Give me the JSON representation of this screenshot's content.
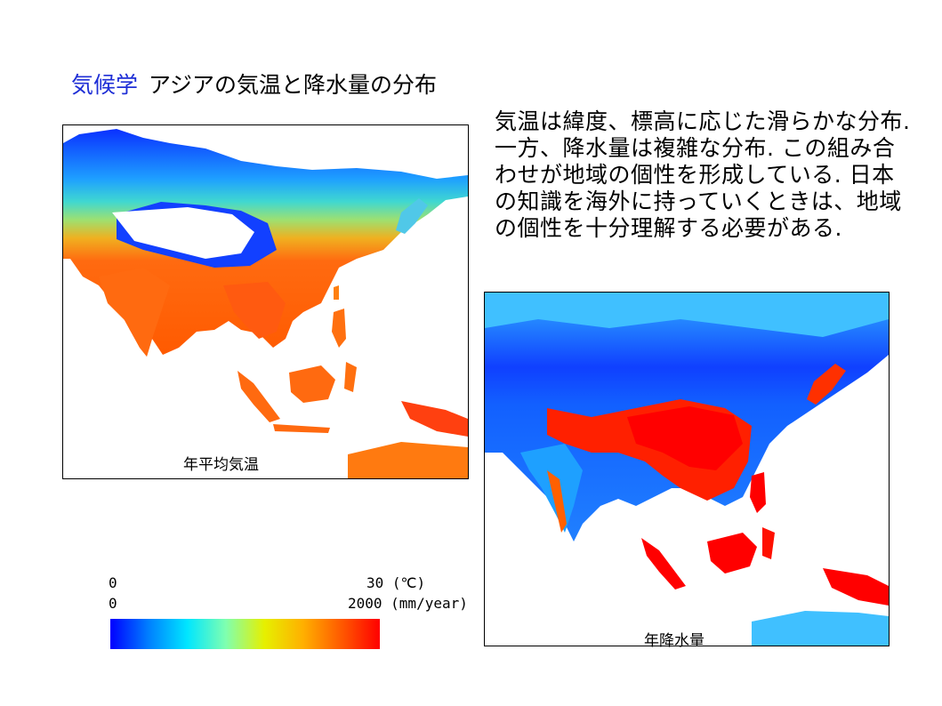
{
  "title": {
    "lead": "気候学",
    "main": "アジアの気温と降水量の分布"
  },
  "description": "気温は緯度、標高に応じた滑らかな分布. 一方、降水量は複雑な分布. この組み合わせが地域の個性を形成している. 日本の知識を海外に持っていくときは、地域の個性を十分理解する必要がある.",
  "maps": {
    "temperature_label": "年平均気温",
    "precipitation_label": "年降水量"
  },
  "scale": {
    "temp_min": "0",
    "temp_max": "30 (℃)",
    "precip_min": "0",
    "precip_max": "2000 (mm/year)",
    "colors": [
      "#0000ff",
      "#0080ff",
      "#00e6ff",
      "#7fffb0",
      "#e6f000",
      "#ffb000",
      "#ff5a00",
      "#ff0000"
    ]
  },
  "palette": {
    "sea": "#ffffff",
    "cold": "#1240ff",
    "cool": "#1ea0ff",
    "mild": "#3ad0e8",
    "temperate": "#8ee070",
    "warm": "#e8c020",
    "hot": "#ff6a10",
    "veryhot": "#ff3000",
    "dry": "#1060ff",
    "wet": "#ff1000"
  }
}
